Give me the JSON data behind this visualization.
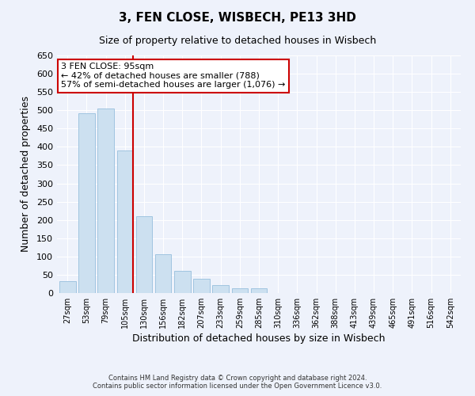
{
  "title": "3, FEN CLOSE, WISBECH, PE13 3HD",
  "subtitle": "Size of property relative to detached houses in Wisbech",
  "xlabel": "Distribution of detached houses by size in Wisbech",
  "ylabel": "Number of detached properties",
  "bar_labels": [
    "27sqm",
    "53sqm",
    "79sqm",
    "105sqm",
    "130sqm",
    "156sqm",
    "182sqm",
    "207sqm",
    "233sqm",
    "259sqm",
    "285sqm",
    "310sqm",
    "336sqm",
    "362sqm",
    "388sqm",
    "413sqm",
    "439sqm",
    "465sqm",
    "491sqm",
    "516sqm",
    "542sqm"
  ],
  "bar_values": [
    33,
    492,
    505,
    390,
    210,
    107,
    61,
    40,
    22,
    14,
    14,
    1,
    0,
    0,
    0,
    0,
    0,
    0,
    1,
    0,
    1
  ],
  "bar_color": "#cce0f0",
  "bar_edge_color": "#a0c4e0",
  "highlight_line_color": "#cc0000",
  "highlight_bar_index": 3,
  "annotation_line1": "3 FEN CLOSE: 95sqm",
  "annotation_line2": "← 42% of detached houses are smaller (788)",
  "annotation_line3": "57% of semi-detached houses are larger (1,076) →",
  "annotation_box_color": "#ffffff",
  "annotation_box_edge": "#cc0000",
  "ylim": [
    0,
    650
  ],
  "yticks": [
    0,
    50,
    100,
    150,
    200,
    250,
    300,
    350,
    400,
    450,
    500,
    550,
    600,
    650
  ],
  "background_color": "#eef2fb",
  "grid_color": "#ffffff",
  "footer_line1": "Contains HM Land Registry data © Crown copyright and database right 2024.",
  "footer_line2": "Contains public sector information licensed under the Open Government Licence v3.0."
}
